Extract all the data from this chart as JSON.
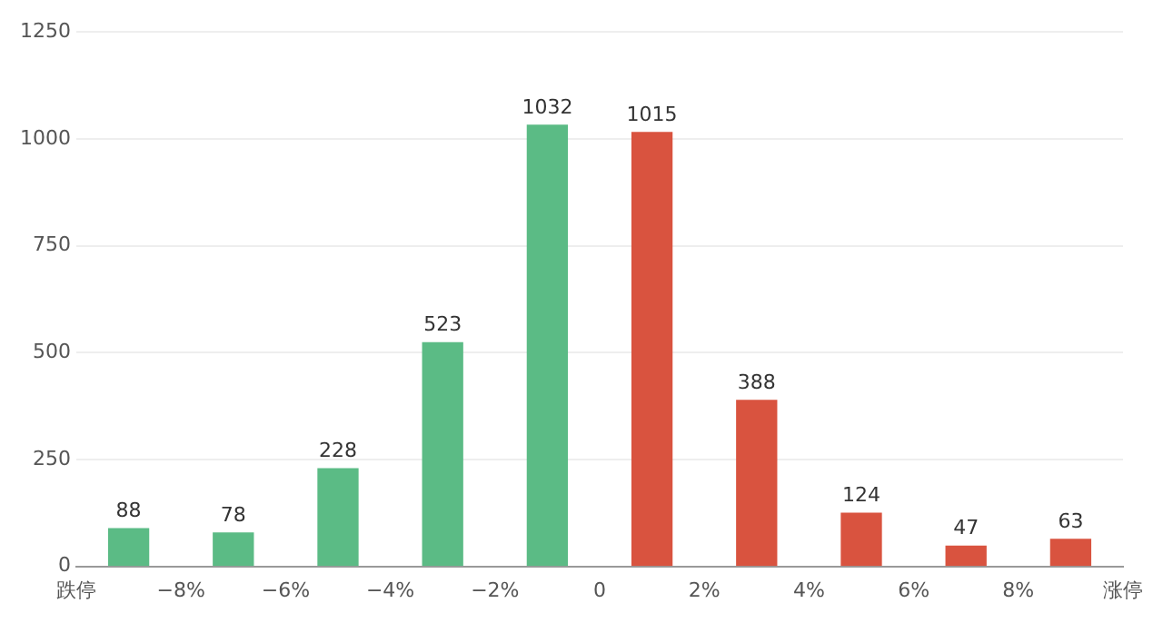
{
  "chart_data": {
    "type": "bar",
    "x": [
      -9,
      -7,
      -5,
      -3,
      -1,
      1,
      3,
      5,
      7,
      9
    ],
    "values": [
      88,
      78,
      228,
      523,
      1032,
      1015,
      388,
      124,
      47,
      63
    ],
    "colors": [
      "#5bbb85",
      "#5bbb85",
      "#5bbb85",
      "#5bbb85",
      "#5bbb85",
      "#d9533f",
      "#d9533f",
      "#d9533f",
      "#d9533f",
      "#d9533f"
    ],
    "xlim": [
      -10,
      10
    ],
    "xticks": [
      {
        "value": -10,
        "label": "跌停"
      },
      {
        "value": -8,
        "label": "−8%"
      },
      {
        "value": -6,
        "label": "−6%"
      },
      {
        "value": -4,
        "label": "−4%"
      },
      {
        "value": -2,
        "label": "−2%"
      },
      0,
      {
        "value": 2,
        "label": "2%"
      },
      {
        "value": 4,
        "label": "4%"
      },
      {
        "value": 6,
        "label": "6%"
      },
      {
        "value": 8,
        "label": "8%"
      },
      {
        "value": 10,
        "label": "涨停"
      }
    ],
    "ylim": [
      0,
      1250
    ],
    "yticks": [
      0,
      250,
      500,
      750,
      1000,
      1250
    ],
    "grid": "y",
    "data_labels": true
  }
}
